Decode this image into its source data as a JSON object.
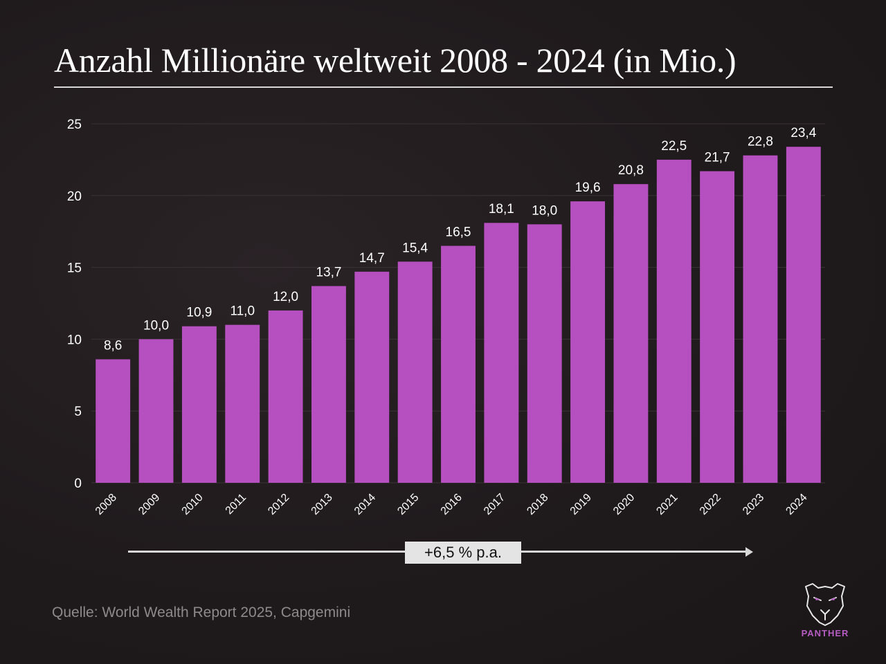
{
  "title": "Anzahl Millionäre weltweit 2008 - 2024 (in Mio.)",
  "chart_data": {
    "type": "bar",
    "title": "Anzahl Millionäre weltweit 2008 - 2024 (in Mio.)",
    "xlabel": "",
    "ylabel": "",
    "categories": [
      "2008",
      "2009",
      "2010",
      "2011",
      "2012",
      "2013",
      "2014",
      "2015",
      "2016",
      "2017",
      "2018",
      "2019",
      "2020",
      "2021",
      "2022",
      "2023",
      "2024"
    ],
    "values": [
      8.6,
      10.0,
      10.9,
      11.0,
      12.0,
      13.7,
      14.7,
      15.4,
      16.5,
      18.1,
      18.0,
      19.6,
      20.8,
      22.5,
      21.7,
      22.8,
      23.4
    ],
    "value_labels": [
      "8,6",
      "10,0",
      "10,9",
      "11,0",
      "12,0",
      "13,7",
      "14,7",
      "15,4",
      "16,5",
      "18,1",
      "18,0",
      "19,6",
      "20,8",
      "22,5",
      "21,7",
      "22,8",
      "23,4"
    ],
    "y_ticks": [
      "0",
      "5",
      "10",
      "15",
      "20",
      "25"
    ],
    "ylim": [
      0,
      25
    ],
    "grid": true,
    "bar_color": "#b64fbf",
    "annotation": "+6,5 % p.a."
  },
  "source_note": "Quelle: World Wealth Report 2025, Capgemini",
  "brand": {
    "name": "PANTHER",
    "icon": "panther-head-icon",
    "color": "#b65cc3"
  }
}
